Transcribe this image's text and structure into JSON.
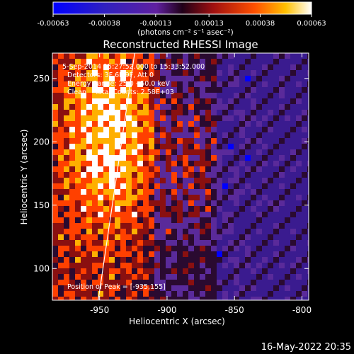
{
  "colorbar": {
    "ticks": [
      "-0.00063",
      "-0.00038",
      "-0.00013",
      "0.00013",
      "0.00038",
      "0.00063"
    ],
    "unit_label": "(photons cm⁻² s⁻¹ asec⁻²)",
    "vmin": -0.00063,
    "vmax": 0.00063
  },
  "chart_data": {
    "type": "heatmap",
    "title": "Reconstructed RHESSI Image",
    "xlabel": "Heliocentric X (arcsec)",
    "ylabel": "Heliocentric Y (arcsec)",
    "xlim": [
      -985,
      -795
    ],
    "ylim": [
      75,
      270
    ],
    "x_ticks": [
      -950,
      -900,
      -850,
      -800
    ],
    "y_ticks": [
      100,
      150,
      200,
      250
    ],
    "x_tick_labels": [
      "-950",
      "-900",
      "-850",
      "-800"
    ],
    "y_tick_labels": [
      "100",
      "150",
      "200",
      "250"
    ],
    "annotations": [
      "5-Sep-2014 15:27:52.000 to 15:33:52.000",
      "Detectors: 3F 6F 9F, Att 0",
      "Energy Range: 25.0 - 50.0 keV",
      "Clean    Total Counts: 2.58E+03"
    ],
    "peak_label": "Position of Peak = [-935,155]",
    "peak": [
      -935,
      155
    ],
    "limb_line": {
      "x": [
        -951,
        -924
      ],
      "y": [
        75,
        270
      ]
    },
    "grid": false,
    "colormap": [
      "#0000ff",
      "#3a1b8f",
      "#5a2a9a",
      "#2a0a30",
      "#8a1010",
      "#ff4000",
      "#ffb000",
      "#ffffff"
    ]
  },
  "footer": {
    "timestamp": "16-May-2022 20:35"
  }
}
